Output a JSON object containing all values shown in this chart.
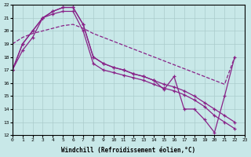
{
  "xlabel": "Windchill (Refroidissement éolien,°C)",
  "xlim": [
    0,
    23
  ],
  "ylim": [
    12,
    22
  ],
  "xticks": [
    0,
    1,
    2,
    3,
    4,
    5,
    6,
    7,
    8,
    9,
    10,
    11,
    12,
    13,
    14,
    15,
    16,
    17,
    18,
    19,
    20,
    21,
    22,
    23
  ],
  "yticks": [
    12,
    13,
    14,
    15,
    16,
    17,
    18,
    19,
    20,
    21,
    22
  ],
  "bg_color": "#c8e8e8",
  "line_color": "#882288",
  "grid_color": "#aacccc",
  "line1_x": [
    0,
    1,
    2,
    3,
    4,
    5,
    6,
    7,
    8,
    9,
    10,
    11,
    12,
    13,
    14,
    15,
    16,
    17,
    18,
    19,
    20,
    21,
    22
  ],
  "line1_y": [
    17,
    19,
    20,
    21,
    21.5,
    21.8,
    21.8,
    20.5,
    18.0,
    17.5,
    17.2,
    17.0,
    16.7,
    16.5,
    16.2,
    15.9,
    15.7,
    15.4,
    15.0,
    14.5,
    14.0,
    13.5,
    13.0
  ],
  "line2_x": [
    0,
    1,
    2,
    3,
    4,
    5,
    6,
    7,
    8,
    9,
    10,
    11,
    12,
    13,
    14,
    15,
    16,
    17,
    18,
    19,
    20,
    21,
    22
  ],
  "line2_y": [
    17,
    19,
    20,
    21,
    21.5,
    21.8,
    21.8,
    20.5,
    18.0,
    17.5,
    17.2,
    17.0,
    16.7,
    16.5,
    16.2,
    15.5,
    16.5,
    14.0,
    14.0,
    13.2,
    12.2,
    15.0,
    18.0
  ],
  "line3_x": [
    0,
    1,
    2,
    3,
    4,
    5,
    6,
    7,
    8,
    9,
    10,
    11,
    12,
    13,
    14,
    15,
    16,
    17,
    18,
    19,
    20,
    21,
    22
  ],
  "line3_y": [
    17,
    18.5,
    19.5,
    21.0,
    21.3,
    21.5,
    21.5,
    20.0,
    17.5,
    17.0,
    16.8,
    16.6,
    16.4,
    16.2,
    15.9,
    15.6,
    15.4,
    15.1,
    14.7,
    14.2,
    13.5,
    13.0,
    12.5
  ],
  "line4_x": [
    0,
    1,
    2,
    3,
    4,
    5,
    6,
    7,
    8,
    9,
    10,
    11,
    12,
    13,
    14,
    15,
    16,
    17,
    18,
    19,
    20,
    21,
    22
  ],
  "line4_y": [
    19,
    19.5,
    19.8,
    20.0,
    20.2,
    20.4,
    20.5,
    20.2,
    19.8,
    19.5,
    19.2,
    18.9,
    18.6,
    18.3,
    18.0,
    17.7,
    17.4,
    17.1,
    16.8,
    16.5,
    16.2,
    15.9,
    18.0
  ]
}
